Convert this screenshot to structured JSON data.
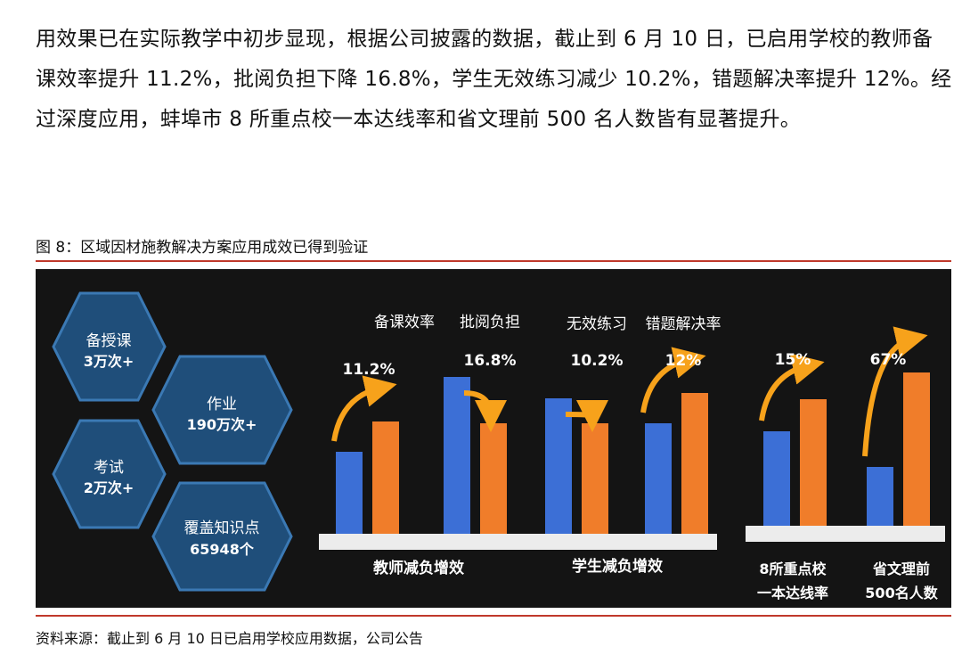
{
  "paragraph": "用效果已在实际教学中初步显现，根据公司披露的数据，截止到 6 月 10 日，已启用学校的教师备课效率提升 11.2%，批阅负担下降 16.8%，学生无效练习减少 10.2%，错题解决率提升 12%。经过深度应用，蚌埠市 8 所重点校一本达线率和省文理前 500 名人数皆有显著提升。",
  "figure": {
    "title": "图 8：区域因材施教解决方案应用成效已得到验证",
    "source": "资料来源：截止到 6 月 10 日已启用学校应用数据，公司公告"
  },
  "hexagons": [
    {
      "line1": "备授课",
      "line2": "3万次+"
    },
    {
      "line1": "作业",
      "line2": "190万次+"
    },
    {
      "line1": "考试",
      "line2": "2万次+"
    },
    {
      "line1": "覆盖知识点",
      "line2": "65948个"
    }
  ],
  "colors": {
    "blue": "#3c6fd6",
    "orange": "#f07d2a",
    "hex_fill": "#1f4e7a",
    "hex_stroke": "#3b79b4",
    "panel": "#141414",
    "rule": "#c0392b"
  },
  "chart_data": {
    "type": "bar",
    "groups": [
      {
        "label": "教师减负增效",
        "categories": [
          "备课效率",
          "批阅负担"
        ]
      },
      {
        "label": "学生减负增效",
        "categories": [
          "无效练习",
          "错题解决率"
        ]
      },
      {
        "label": "8所重点校\n一本达线率",
        "categories": [
          ""
        ]
      },
      {
        "label": "省文理前\n500名人数",
        "categories": [
          ""
        ]
      }
    ],
    "items": [
      {
        "name": "备课效率",
        "change": "11.2%",
        "direction": "up",
        "before": 0.46,
        "after": 0.63
      },
      {
        "name": "批阅负担",
        "change": "16.8%",
        "direction": "down",
        "before": 0.88,
        "after": 0.62
      },
      {
        "name": "无效练习",
        "change": "10.2%",
        "direction": "down",
        "before": 0.76,
        "after": 0.62
      },
      {
        "name": "错题解决率",
        "change": "12%",
        "direction": "up",
        "before": 0.62,
        "after": 0.79
      },
      {
        "name": "8所重点校一本达线率",
        "change": "15%",
        "direction": "up",
        "before": 0.53,
        "after": 0.71
      },
      {
        "name": "省文理前500名人数",
        "change": "67%",
        "direction": "up",
        "before": 0.33,
        "after": 0.86
      }
    ],
    "series": [
      {
        "color": "blue"
      },
      {
        "color": "orange"
      }
    ]
  }
}
